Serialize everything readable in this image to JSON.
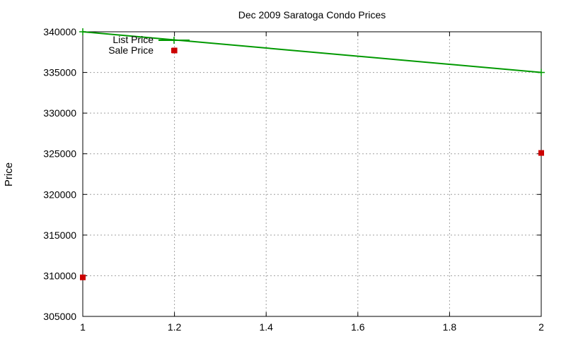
{
  "chart_data": {
    "type": "line",
    "title": "Dec 2009 Saratoga Condo Prices",
    "xlabel": "",
    "ylabel": "Price",
    "xlim": [
      1,
      2
    ],
    "ylim": [
      305000,
      340000
    ],
    "xticks": [
      1,
      1.2,
      1.4,
      1.6,
      1.8,
      2
    ],
    "xtick_labels": [
      "1",
      "1.2",
      "1.4",
      "1.6",
      "1.8",
      "2"
    ],
    "yticks": [
      305000,
      310000,
      315000,
      320000,
      325000,
      330000,
      335000,
      340000
    ],
    "ytick_labels": [
      "305000",
      "310000",
      "315000",
      "320000",
      "325000",
      "330000",
      "335000",
      "340000"
    ],
    "grid": true,
    "legend_position": "top-left",
    "series": [
      {
        "name": "List Price",
        "style": "line-with-plus-markers",
        "color": "#009900",
        "x": [
          1,
          2
        ],
        "y": [
          340000,
          335000
        ]
      },
      {
        "name": "Sale Price",
        "style": "square-markers",
        "color": "#cc0000",
        "x": [
          1,
          1.2,
          2
        ],
        "y": [
          309800,
          337700,
          325100
        ]
      }
    ]
  }
}
